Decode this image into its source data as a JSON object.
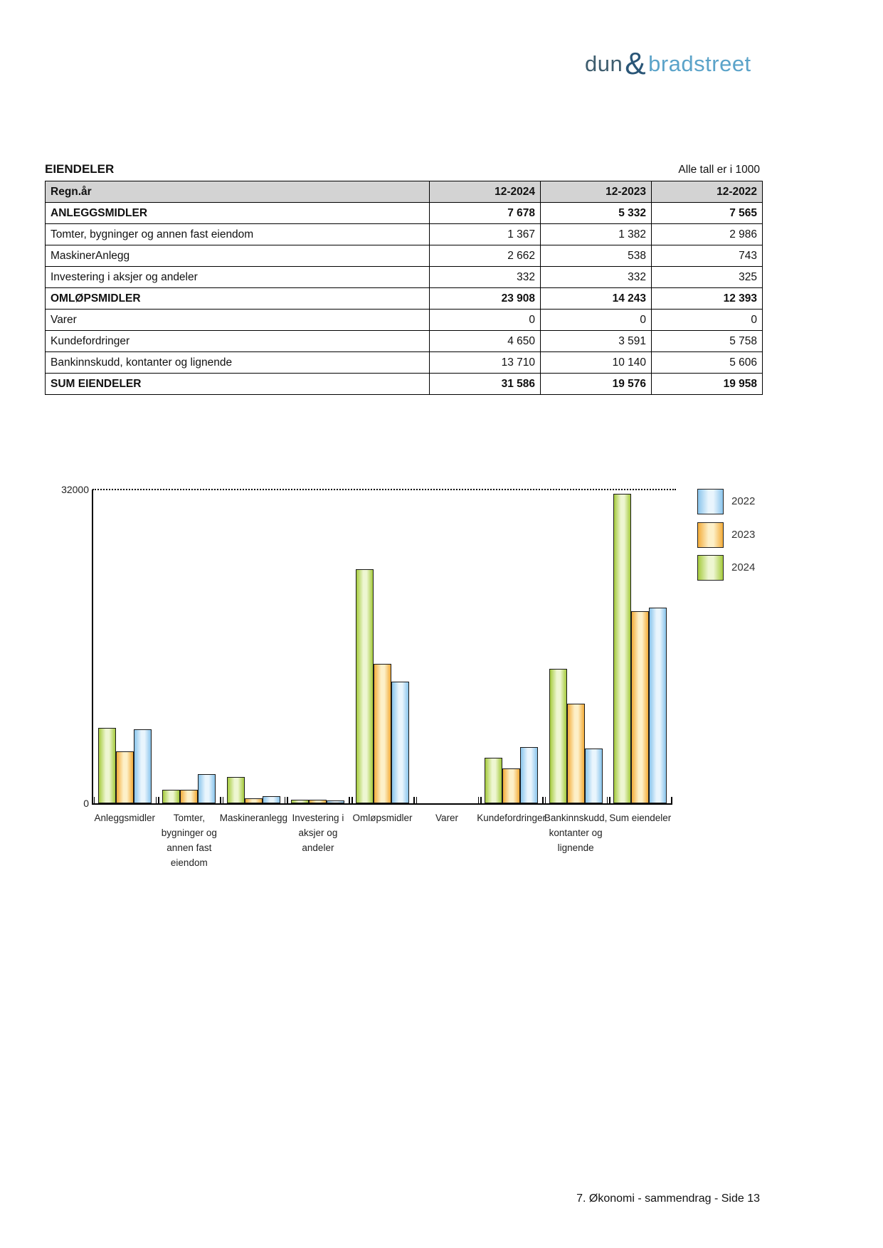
{
  "logo": {
    "part1": "dun",
    "amp": "&",
    "part2": "bradstreet"
  },
  "header": {
    "title": "EIENDELER",
    "note": "Alle tall er i 1000"
  },
  "table": {
    "columns": [
      "Regn.år",
      "12-2024",
      "12-2023",
      "12-2022"
    ],
    "rows": [
      {
        "label": "ANLEGGSMIDLER",
        "values": [
          "7 678",
          "5 332",
          "7 565"
        ],
        "bold": true
      },
      {
        "label": "Tomter, bygninger og annen fast eiendom",
        "values": [
          "1 367",
          "1 382",
          "2 986"
        ],
        "bold": false
      },
      {
        "label": "MaskinerAnlegg",
        "values": [
          "2 662",
          "538",
          "743"
        ],
        "bold": false
      },
      {
        "label": "Investering i aksjer og andeler",
        "values": [
          "332",
          "332",
          "325"
        ],
        "bold": false
      },
      {
        "label": "OMLØPSMIDLER",
        "values": [
          "23 908",
          "14 243",
          "12 393"
        ],
        "bold": true
      },
      {
        "label": "Varer",
        "values": [
          "0",
          "0",
          "0"
        ],
        "bold": false
      },
      {
        "label": "Kundefordringer",
        "values": [
          "4 650",
          "3 591",
          "5 758"
        ],
        "bold": false
      },
      {
        "label": "Bankinnskudd, kontanter og lignende",
        "values": [
          "13 710",
          "10 140",
          "5 606"
        ],
        "bold": false
      },
      {
        "label": "SUM EIENDELER",
        "values": [
          "31 586",
          "19 576",
          "19 958"
        ],
        "bold": true
      }
    ]
  },
  "chart_data": {
    "type": "bar",
    "title": "",
    "xlabel": "",
    "ylabel": "",
    "ylim": [
      0,
      32000
    ],
    "yticks": [
      {
        "value": 32000,
        "label": "32000"
      },
      {
        "value": 0,
        "label": "0"
      }
    ],
    "grid": "dotted-line-at-32000",
    "legend_position": "right",
    "legend_order": [
      "2022",
      "2023",
      "2024"
    ],
    "categories": [
      "Anleggsmidler",
      "Tomter, bygninger og annen fast eiendom",
      "Maskineranlegg",
      "Investering i aksjer og andeler",
      "Omløpsmidler",
      "Varer",
      "Kundefordringer",
      "Bankinnskudd, kontanter og lignende",
      "Sum eiendeler"
    ],
    "category_label_lines": [
      [
        "Anleggsmidler"
      ],
      [
        "Tomter,",
        "bygninger og",
        "annen fast",
        "eiendom"
      ],
      [
        "Maskineranlegg"
      ],
      [
        "Investering i",
        "aksjer og",
        "andeler"
      ],
      [
        "Omløpsmidler"
      ],
      [
        "Varer"
      ],
      [
        "Kundefordringer"
      ],
      [
        "Bankinnskudd,",
        "kontanter og",
        "lignende"
      ],
      [
        "Sum eiendeler"
      ]
    ],
    "series": [
      {
        "name": "2024",
        "color_edge": "#a5cb3d",
        "color_light": "#eef6d2",
        "values": [
          7678,
          1367,
          2662,
          332,
          23908,
          0,
          4650,
          13710,
          31586
        ]
      },
      {
        "name": "2023",
        "color_edge": "#f3ac3a",
        "color_light": "#fdf0c8",
        "values": [
          5332,
          1382,
          538,
          332,
          14243,
          0,
          3591,
          10140,
          19576
        ]
      },
      {
        "name": "2022",
        "color_edge": "#8ac5ec",
        "color_light": "#e9f5fd",
        "values": [
          7565,
          2986,
          743,
          325,
          12393,
          0,
          5758,
          5606,
          19958
        ]
      }
    ]
  },
  "footer": {
    "text": "7. Økonomi - sammendrag - Side 13"
  }
}
